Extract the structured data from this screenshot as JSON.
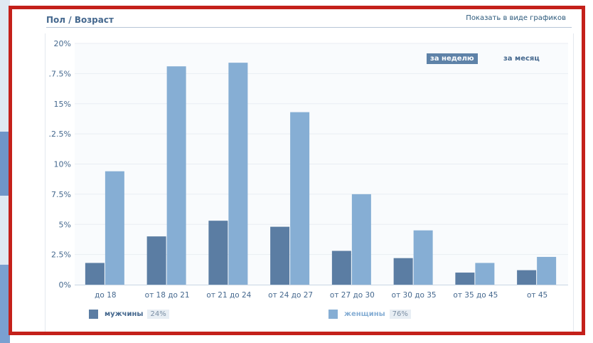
{
  "header": {
    "title": "Пол / Возраст",
    "show_link": "Показать в виде графиков"
  },
  "period": {
    "week": "за неделю",
    "month": "за месяц",
    "selected": "week"
  },
  "legend": [
    {
      "name": "мужчины",
      "percent": "24%",
      "color": "#5b7da3"
    },
    {
      "name": "женщины",
      "percent": "76%",
      "color": "#86aed4"
    }
  ],
  "chart_data": {
    "type": "bar",
    "categories": [
      "до 18",
      "от 18 до 21",
      "от 21 до 24",
      "от 24 до 27",
      "от 27 до 30",
      "от 30 до 35",
      "от 35 до 45",
      "от 45"
    ],
    "series": [
      {
        "name": "мужчины",
        "values": [
          1.8,
          4.0,
          5.3,
          4.8,
          2.8,
          2.2,
          1.0,
          1.2
        ],
        "color": "#5b7da3"
      },
      {
        "name": "женщины",
        "values": [
          9.4,
          18.1,
          18.4,
          14.3,
          7.5,
          4.5,
          1.8,
          2.3
        ],
        "color": "#86aed4"
      }
    ],
    "yticks": [
      "0%",
      "2.5%",
      "5%",
      "7.5%",
      "10%",
      ".2.5%",
      "15%",
      ".7.5%",
      "20%"
    ],
    "ylim": [
      0,
      20
    ],
    "grid": true,
    "legend_position": "bottom"
  }
}
